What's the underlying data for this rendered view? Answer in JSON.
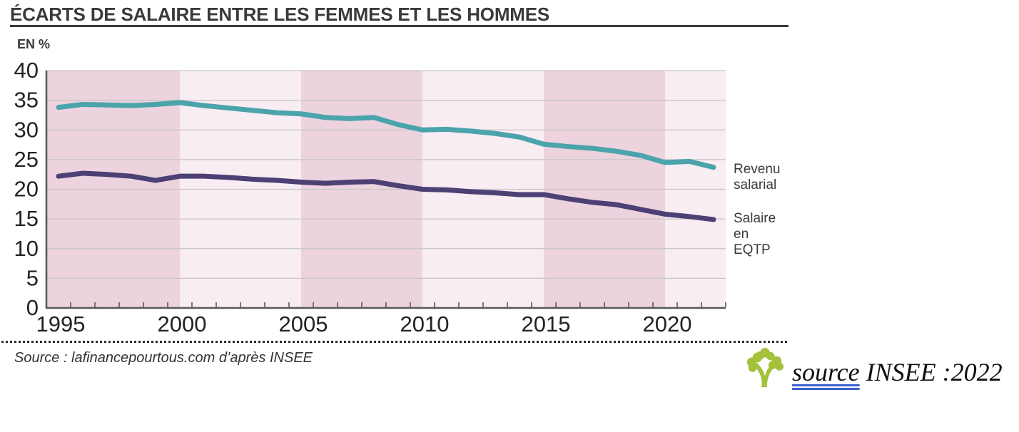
{
  "page": {
    "title": "ÉCARTS DE SALAIRE ENTRE LES FEMMES ET LES HOMMES",
    "unit_label": "EN %",
    "source_note": "Source : lafinancepourtous.com d’après INSEE",
    "footer_link": "source",
    "footer_rest": " INSEE :2022"
  },
  "legend": {
    "revenu": "Revenu\nsalarial",
    "salaire": "Salaire\nen\nEQTP"
  },
  "colors": {
    "band_dark": "#ecd3de",
    "band_light": "#f8edf2",
    "grid": "#c6c6c6",
    "axis": "#58595b",
    "title": "#3a3a3a",
    "link_blue": "#3a5fcd",
    "tree_green": "#a4c13c",
    "revenu_teal": "#4ba3ac",
    "salaire_purple": "#4c4074"
  },
  "chart_data": {
    "type": "line",
    "title": "ÉCARTS DE SALAIRE ENTRE LES FEMMES ET LES HOMMES",
    "ylabel": "EN %",
    "xlabel": "",
    "grid": true,
    "legend_position": "right",
    "ylim": [
      0,
      40
    ],
    "ytick_step": 5,
    "x_domain": [
      1994.5,
      2022.5
    ],
    "xticks_labeled": [
      1995,
      2000,
      2005,
      2010,
      2015,
      2020
    ],
    "x": [
      1995,
      1996,
      1997,
      1998,
      1999,
      2000,
      2001,
      2002,
      2003,
      2004,
      2005,
      2006,
      2007,
      2008,
      2009,
      2010,
      2011,
      2012,
      2013,
      2014,
      2015,
      2016,
      2017,
      2018,
      2019,
      2020,
      2021,
      2022
    ],
    "series": [
      {
        "name": "Revenu salarial",
        "color": "#4ba3ac",
        "values": [
          33.8,
          34.3,
          34.2,
          34.1,
          34.3,
          34.6,
          34.1,
          33.7,
          33.3,
          32.9,
          32.7,
          32.1,
          31.9,
          32.1,
          30.9,
          30.0,
          30.1,
          29.8,
          29.4,
          28.8,
          27.6,
          27.2,
          26.9,
          26.4,
          25.7,
          24.5,
          24.7,
          23.7
        ]
      },
      {
        "name": "Salaire en EQTP",
        "color": "#4c4074",
        "values": [
          22.2,
          22.7,
          22.5,
          22.2,
          21.5,
          22.2,
          22.2,
          22.0,
          21.7,
          21.5,
          21.2,
          21.0,
          21.2,
          21.3,
          20.6,
          20.0,
          19.9,
          19.6,
          19.4,
          19.1,
          19.1,
          18.4,
          17.8,
          17.4,
          16.6,
          15.8,
          15.4,
          14.9
        ]
      }
    ],
    "background_bands": [
      {
        "from": 1994.5,
        "to": 2000,
        "shade": "band_dark"
      },
      {
        "from": 2000,
        "to": 2005,
        "shade": "band_light"
      },
      {
        "from": 2005,
        "to": 2010,
        "shade": "band_dark"
      },
      {
        "from": 2010,
        "to": 2015,
        "shade": "band_light"
      },
      {
        "from": 2015,
        "to": 2020,
        "shade": "band_dark"
      },
      {
        "from": 2020,
        "to": 2022.5,
        "shade": "band_light"
      }
    ]
  }
}
